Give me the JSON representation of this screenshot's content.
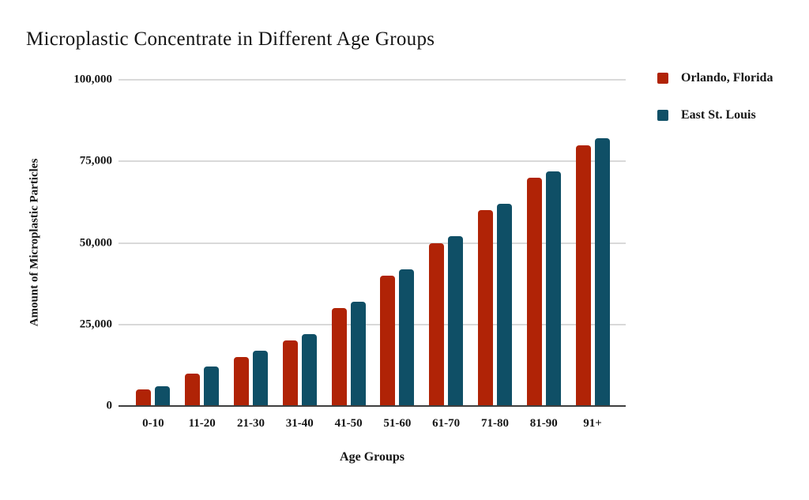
{
  "title": "Microplastic Concentrate in Different Age Groups",
  "colors": {
    "series_red": "#b02306",
    "series_teal": "#0f4f66",
    "gridline": "#d9d9d9",
    "axis_line": "#3f3f3f",
    "text": "#161616",
    "background": "#ffffff"
  },
  "chart_data": {
    "type": "bar",
    "title": "Microplastic Concentrate in Different Age Groups",
    "xlabel": "Age Groups",
    "ylabel": "Amount of Microplastic Particles",
    "categories": [
      "0-10",
      "11-20",
      "21-30",
      "31-40",
      "41-50",
      "51-60",
      "61-70",
      "71-80",
      "81-90",
      "91+"
    ],
    "series": [
      {
        "name": "Orlando, Florida",
        "color": "#b02306",
        "values": [
          5000,
          10000,
          15000,
          20000,
          30000,
          40000,
          50000,
          60000,
          70000,
          80000
        ]
      },
      {
        "name": "East St. Louis",
        "color": "#0f4f66",
        "values": [
          6000,
          12000,
          17000,
          22000,
          32000,
          42000,
          52000,
          62000,
          72000,
          82000
        ]
      }
    ],
    "ylim": [
      0,
      100000
    ],
    "yticks": [
      0,
      25000,
      50000,
      75000,
      100000
    ],
    "ytick_labels": [
      "0",
      "25,000",
      "50,000",
      "75,000",
      "100,000"
    ],
    "grid": true,
    "legend_position": "right"
  }
}
